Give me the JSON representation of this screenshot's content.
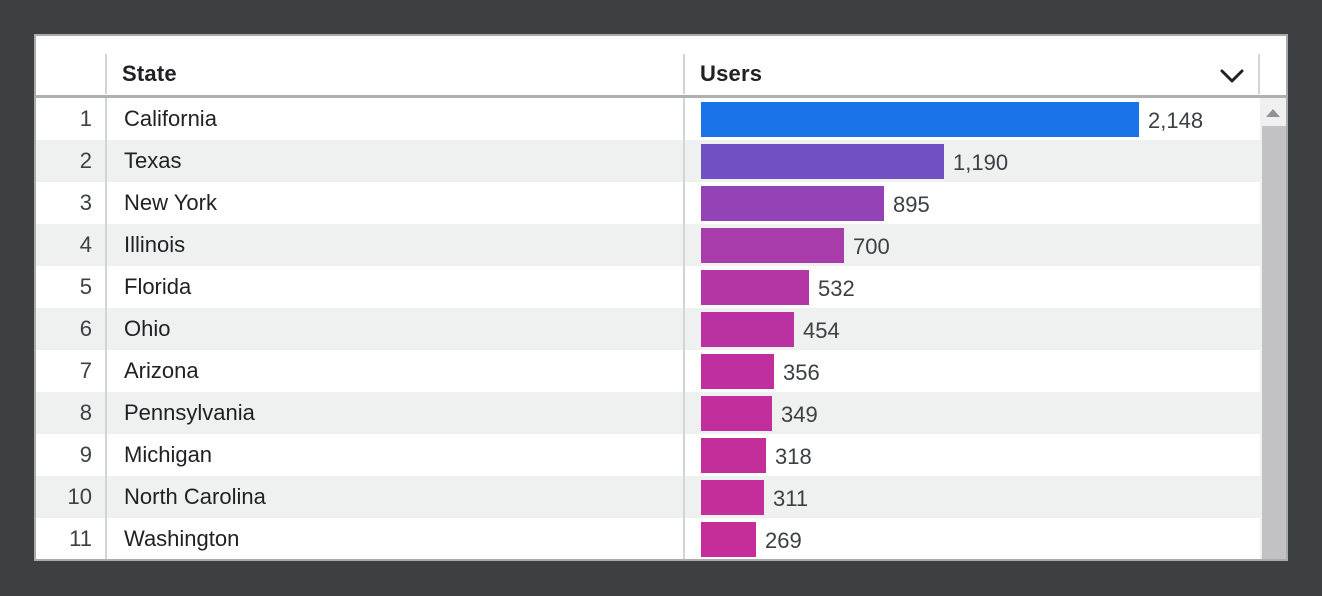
{
  "window": {
    "background_color": "#3c4043",
    "card_border_color": "#a9abad"
  },
  "table": {
    "header": {
      "rank_label": "",
      "state_label": "State",
      "users_label": "Users",
      "collapse_icon": "chevron-down-icon"
    },
    "scrollbar": {
      "up_icon": "triangle-up-icon",
      "track_color": "#f0f0f1",
      "thumb_color": "#c2c2c6"
    },
    "zebra_stripe_color": "#eff1f1"
  },
  "chart_data": {
    "type": "bar",
    "orientation": "horizontal",
    "xlabel": "Users",
    "ylabel": "State",
    "xlim": [
      0,
      2148
    ],
    "grid": false,
    "legend": "none",
    "categories": [
      "California",
      "Texas",
      "New York",
      "Illinois",
      "Florida",
      "Ohio",
      "Arizona",
      "Pennsylvania",
      "Michigan",
      "North Carolina",
      "Washington"
    ],
    "values": [
      2148,
      1190,
      895,
      700,
      532,
      454,
      356,
      349,
      318,
      311,
      269
    ],
    "bar_colors": [
      "#1a73e8",
      "#7150c3",
      "#9343b6",
      "#a93cab",
      "#b236a6",
      "#ba32a1",
      "#c02f9e",
      "#c22f9c",
      "#c32e9b",
      "#c42e9a",
      "#c52e99"
    ],
    "rows": [
      {
        "rank": "1",
        "state": "California",
        "users": 2148,
        "users_label": "2,148",
        "color": "#1a73e8"
      },
      {
        "rank": "2",
        "state": "Texas",
        "users": 1190,
        "users_label": "1,190",
        "color": "#7150c3"
      },
      {
        "rank": "3",
        "state": "New York",
        "users": 895,
        "users_label": "895",
        "color": "#9343b6"
      },
      {
        "rank": "4",
        "state": "Illinois",
        "users": 700,
        "users_label": "700",
        "color": "#a93cab"
      },
      {
        "rank": "5",
        "state": "Florida",
        "users": 532,
        "users_label": "532",
        "color": "#b236a6"
      },
      {
        "rank": "6",
        "state": "Ohio",
        "users": 454,
        "users_label": "454",
        "color": "#ba32a1"
      },
      {
        "rank": "7",
        "state": "Arizona",
        "users": 356,
        "users_label": "356",
        "color": "#c02f9e"
      },
      {
        "rank": "8",
        "state": "Pennsylvania",
        "users": 349,
        "users_label": "349",
        "color": "#c22f9c"
      },
      {
        "rank": "9",
        "state": "Michigan",
        "users": 318,
        "users_label": "318",
        "color": "#c32e9b"
      },
      {
        "rank": "10",
        "state": "North Carolina",
        "users": 311,
        "users_label": "311",
        "color": "#c42e9a"
      },
      {
        "rank": "11",
        "state": "Washington",
        "users": 269,
        "users_label": "269",
        "color": "#c52e99"
      }
    ]
  }
}
